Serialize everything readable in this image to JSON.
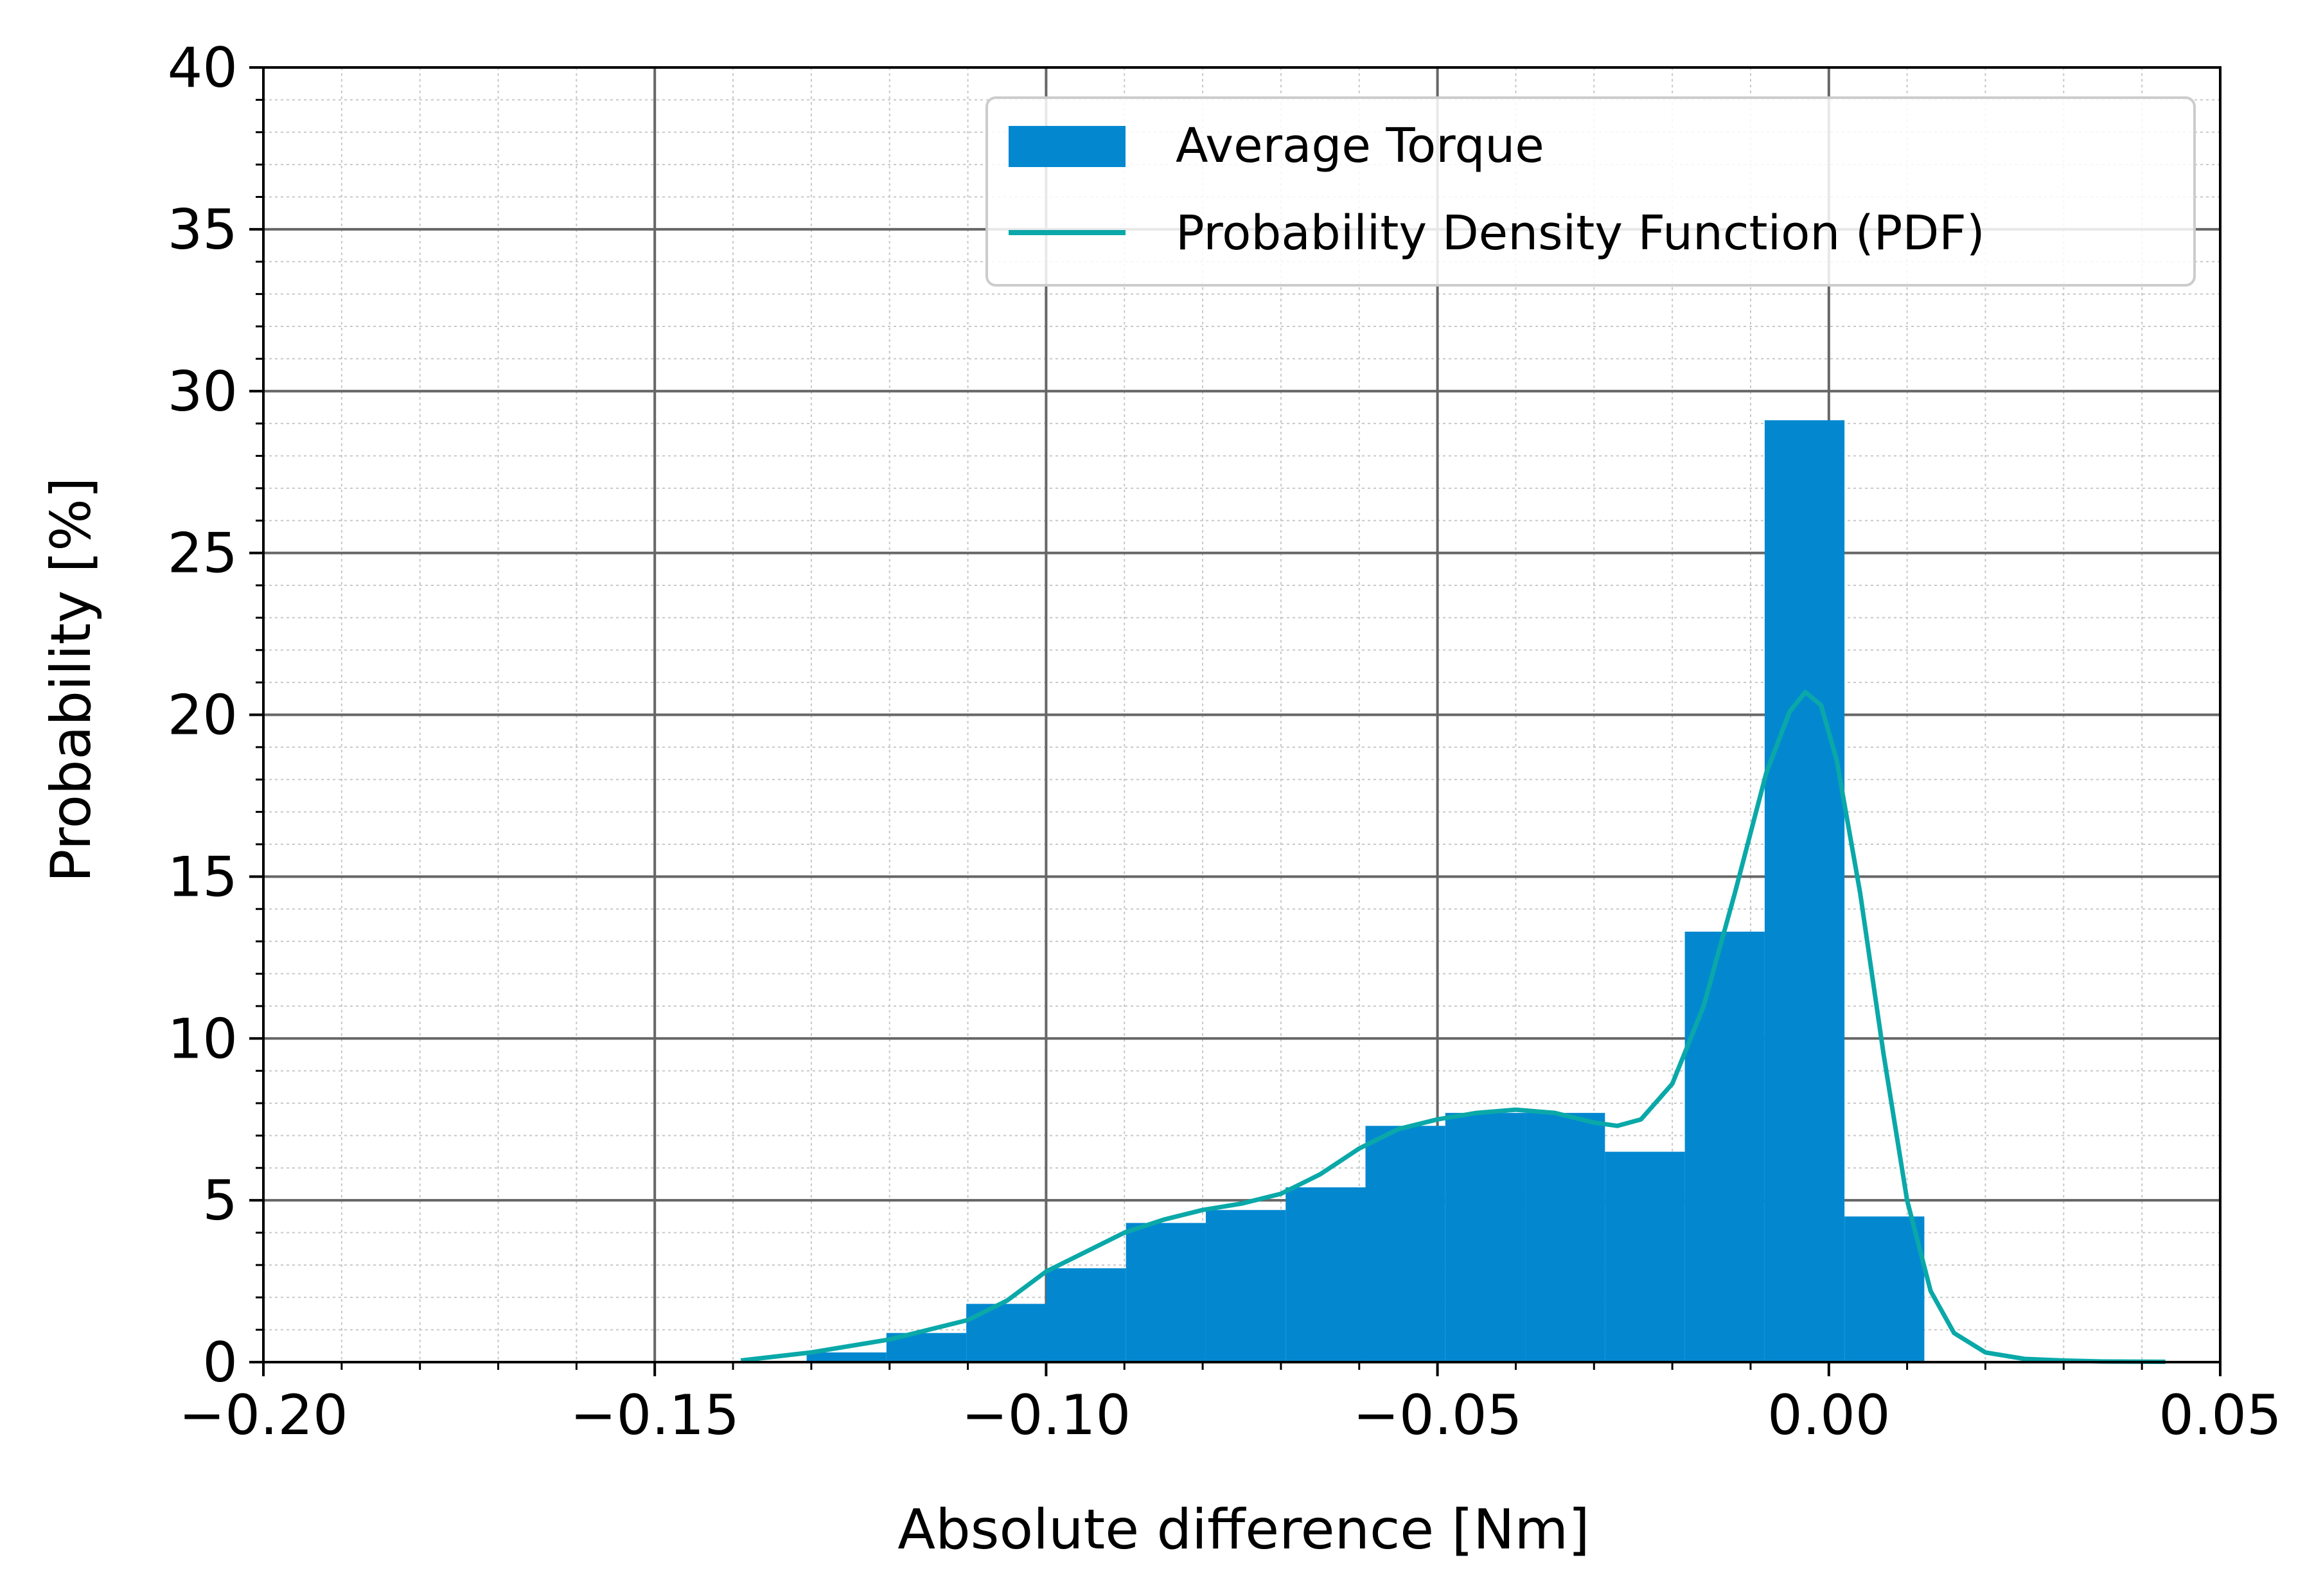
{
  "chart_data": {
    "type": "bar",
    "xlabel": "Absolute difference [Nm]",
    "ylabel": "Probability [%]",
    "xlim": [
      -0.2,
      0.05
    ],
    "ylim": [
      0,
      40
    ],
    "xticks": [
      "−0.20",
      "−0.15",
      "−0.10",
      "−0.05",
      "0.00",
      "0.05"
    ],
    "xtick_values": [
      -0.2,
      -0.15,
      -0.1,
      -0.05,
      0.0,
      0.05
    ],
    "yticks": [
      "0",
      "5",
      "10",
      "15",
      "20",
      "25",
      "30",
      "35",
      "40"
    ],
    "ytick_values": [
      0,
      5,
      10,
      15,
      20,
      25,
      30,
      35,
      40
    ],
    "grid": true,
    "minor_grid": true,
    "legend_position": "upper right",
    "series": [
      {
        "name": "Average Torque",
        "kind": "histogram",
        "color": "#0388d0",
        "bins": [
          {
            "x0": -0.1306,
            "x1": -0.1204,
            "value": 0.3
          },
          {
            "x0": -0.1204,
            "x1": -0.1102,
            "value": 0.9
          },
          {
            "x0": -0.1102,
            "x1": -0.1,
            "value": 1.8
          },
          {
            "x0": -0.1,
            "x1": -0.0898,
            "value": 2.9
          },
          {
            "x0": -0.0898,
            "x1": -0.0796,
            "value": 4.3
          },
          {
            "x0": -0.0796,
            "x1": -0.0694,
            "value": 4.7
          },
          {
            "x0": -0.0694,
            "x1": -0.0592,
            "value": 5.4
          },
          {
            "x0": -0.0592,
            "x1": -0.049,
            "value": 7.3
          },
          {
            "x0": -0.049,
            "x1": -0.0388,
            "value": 7.7
          },
          {
            "x0": -0.0388,
            "x1": -0.0286,
            "value": 7.7
          },
          {
            "x0": -0.0286,
            "x1": -0.0184,
            "value": 6.5
          },
          {
            "x0": -0.0184,
            "x1": -0.0082,
            "value": 13.3
          },
          {
            "x0": -0.0082,
            "x1": 0.002,
            "value": 29.1
          },
          {
            "x0": 0.002,
            "x1": 0.0122,
            "value": 4.5
          }
        ]
      },
      {
        "name": "Probability Density Function (PDF)",
        "kind": "line",
        "color": "#0aa8a8",
        "x": [
          -0.139,
          -0.13,
          -0.12,
          -0.11,
          -0.105,
          -0.1,
          -0.095,
          -0.09,
          -0.085,
          -0.08,
          -0.075,
          -0.07,
          -0.065,
          -0.06,
          -0.055,
          -0.05,
          -0.045,
          -0.04,
          -0.035,
          -0.03,
          -0.027,
          -0.024,
          -0.02,
          -0.016,
          -0.012,
          -0.008,
          -0.005,
          -0.003,
          -0.001,
          0.001,
          0.004,
          0.007,
          0.01,
          0.013,
          0.016,
          0.02,
          0.025,
          0.03,
          0.035,
          0.043
        ],
        "y": [
          0.05,
          0.3,
          0.7,
          1.3,
          1.9,
          2.8,
          3.4,
          4.0,
          4.4,
          4.7,
          4.9,
          5.2,
          5.8,
          6.6,
          7.2,
          7.5,
          7.7,
          7.8,
          7.7,
          7.4,
          7.3,
          7.5,
          8.6,
          11.0,
          14.5,
          18.2,
          20.1,
          20.7,
          20.3,
          18.6,
          14.5,
          9.5,
          5.0,
          2.2,
          0.9,
          0.3,
          0.1,
          0.05,
          0.02,
          0.01
        ]
      }
    ]
  }
}
